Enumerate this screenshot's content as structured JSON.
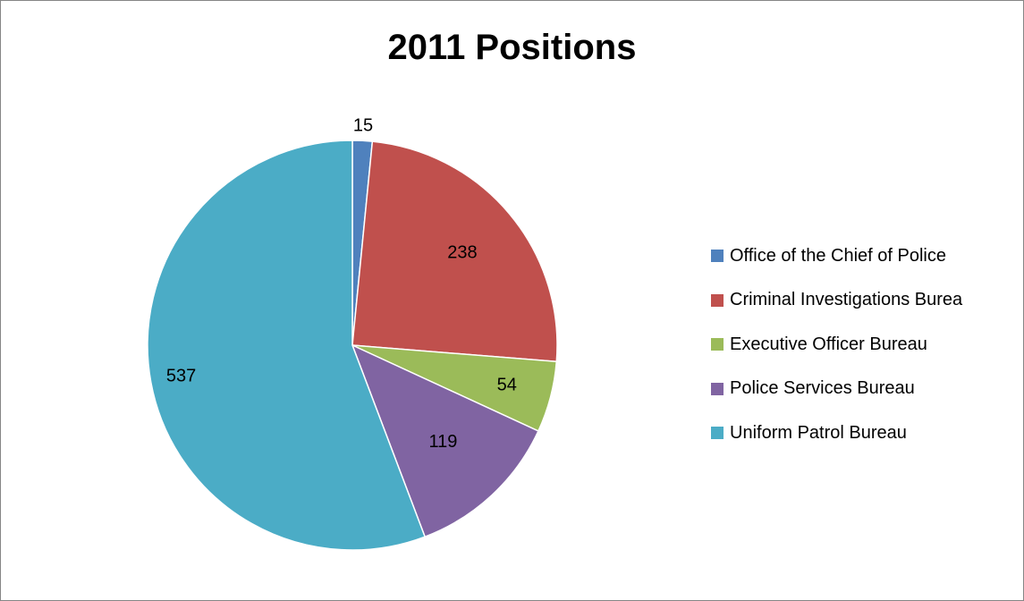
{
  "chart_data": {
    "type": "pie",
    "title": "2011 Positions",
    "categories": [
      "Office of the Chief of Police",
      "Criminal Investigations Burea",
      "Executive Officer Bureau",
      "Police Services Bureau",
      "Uniform Patrol Bureau"
    ],
    "values": [
      15,
      238,
      54,
      119,
      537
    ],
    "colors": [
      "#4F81BD",
      "#C0504D",
      "#9BBB59",
      "#8064A2",
      "#4BACC6"
    ],
    "legend_position": "right",
    "data_labels": true
  }
}
